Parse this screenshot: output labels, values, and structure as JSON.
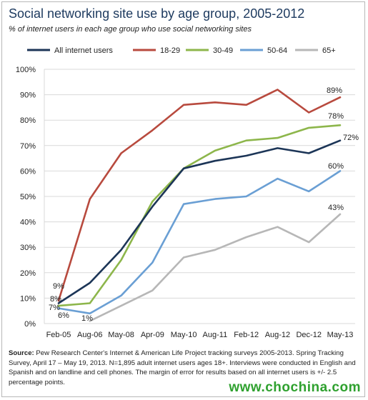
{
  "title": "Social networking site use by age group, 2005-2012",
  "subtitle": "% of internet users in each age group who use social networking sites",
  "source": {
    "label": "Source:",
    "text": " Pew Research Center's Internet & American Life Project tracking surveys 2005-2013. Spring Tracking Survey, April 17 – May 19, 2013. N=1,895 adult internet users ages 18+. Interviews were conducted in English and Spanish and on landline and cell phones.  The margin of error for results based on all internet users is +/- 2.5 percentage points."
  },
  "watermark": "www.chochina.com",
  "chart_data": {
    "type": "line",
    "title": "Social networking site use by age group, 2005-2012",
    "xlabel": "",
    "ylabel": "",
    "ylim": [
      0,
      100
    ],
    "y_ticks": [
      "0%",
      "10%",
      "20%",
      "30%",
      "40%",
      "50%",
      "60%",
      "70%",
      "80%",
      "90%",
      "100%"
    ],
    "x_tick_labels": [
      "Feb-05",
      "Aug-06",
      "May-08",
      "Apr-09",
      "May-10",
      "Aug-11",
      "Feb-12",
      "Aug-12",
      "Dec-12",
      "May-13"
    ],
    "x": [
      "Feb-05",
      "Aug-06",
      "May-08",
      "Apr-09",
      "May-10",
      "Aug-11",
      "Feb-12",
      "Aug-12",
      "Dec-12",
      "May-13"
    ],
    "grid": "horizontal",
    "legend_position": "top",
    "series": [
      {
        "name": "All internet users",
        "color": "#1c3557",
        "values": [
          8,
          16,
          29,
          46,
          61,
          64,
          66,
          69,
          67,
          72
        ],
        "start_label": "8%",
        "end_label": "72%"
      },
      {
        "name": "18-29",
        "color": "#b84a3e",
        "values": [
          9,
          49,
          67,
          76,
          86,
          87,
          86,
          92,
          83,
          89
        ],
        "start_label": "9%",
        "end_label": "89%"
      },
      {
        "name": "30-49",
        "color": "#8db64b",
        "values": [
          7,
          8,
          25,
          48,
          61,
          68,
          72,
          73,
          77,
          78
        ],
        "start_label": "7%",
        "end_label": "78%"
      },
      {
        "name": "50-64",
        "color": "#6a9fd4",
        "values": [
          6,
          4,
          11,
          24,
          47,
          49,
          50,
          57,
          52,
          60
        ],
        "start_label": "6%",
        "end_label": "60%"
      },
      {
        "name": "65+",
        "color": "#b7b7b7",
        "values": [
          null,
          1,
          7,
          13,
          26,
          29,
          34,
          38,
          32,
          43
        ],
        "start_label": "1%",
        "end_label": "43%"
      }
    ]
  }
}
